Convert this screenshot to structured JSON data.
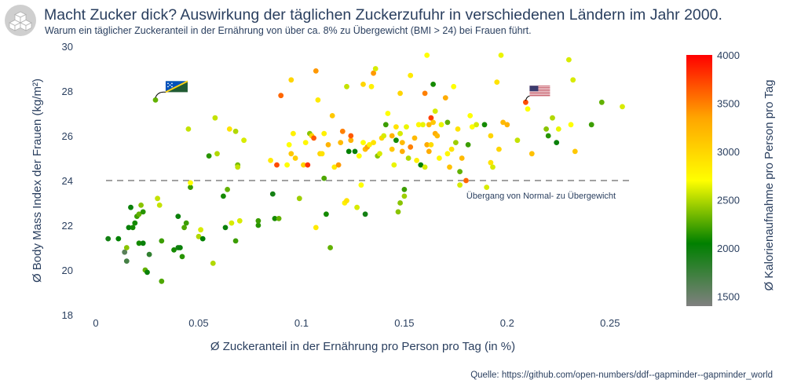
{
  "header": {
    "title": "Macht Zucker dick? Auswirkung der täglichen Zuckerzufuhr in verschiedenen Ländern im Jahr 2000.",
    "subtitle": "Warum ein täglicher Zuckeranteil in der Ernährung von über ca. 8% zu Übergewicht (BMI > 24) bei Frauen führt.",
    "logo_icon": "cubes-icon"
  },
  "footer": {
    "source": "Quelle: https://github.com/open-numbers/ddf--gapminder--gapminder_world"
  },
  "chart_data": {
    "type": "scatter",
    "xlabel": "Ø Zuckeranteil in der Ernährung pro Person pro Tag (in %)",
    "ylabel": "Ø Body Mass Index der Frauen (kg/m²)",
    "xlim": [
      0,
      0.26
    ],
    "ylim": [
      18,
      30
    ],
    "x_ticks": [
      "0",
      "0.05",
      "0.1",
      "0.15",
      "0.2",
      "0.25"
    ],
    "x_tick_values": [
      0,
      0.05,
      0.1,
      0.15,
      0.2,
      0.25
    ],
    "y_ticks": [
      "18",
      "20",
      "22",
      "24",
      "26",
      "28",
      "30"
    ],
    "y_tick_values": [
      18,
      20,
      22,
      24,
      26,
      28,
      30
    ],
    "grid": false,
    "colorbar": {
      "title": "Ø Kalorienaufnahme pro Person pro Tag",
      "min": 1400,
      "max": 4000,
      "ticks": [
        "1500",
        "2000",
        "2500",
        "3000",
        "3500",
        "4000"
      ],
      "tick_values": [
        1500,
        2000,
        2500,
        3000,
        3500,
        4000
      ],
      "colors": [
        "#808080",
        "#008000",
        "#ffff00",
        "#ffa500",
        "#ff0000"
      ]
    },
    "reference_line": {
      "y": 24,
      "label": "Übergang von Normal- zu Übergewicht"
    },
    "flag_annotations": [
      {
        "name": "solomon-islands-flag",
        "x": 0.029,
        "y": 27.6
      },
      {
        "name": "usa-flag",
        "x": 0.209,
        "y": 27.5
      }
    ],
    "points": [
      [
        0.006,
        21.4,
        1950
      ],
      [
        0.011,
        21.4,
        2050
      ],
      [
        0.014,
        20.8,
        1600
      ],
      [
        0.015,
        20.4,
        1700
      ],
      [
        0.015,
        21.0,
        2400
      ],
      [
        0.016,
        21.9,
        2000
      ],
      [
        0.017,
        22.8,
        2000
      ],
      [
        0.018,
        21.9,
        2100
      ],
      [
        0.019,
        22.1,
        2100
      ],
      [
        0.02,
        22.4,
        2200
      ],
      [
        0.021,
        21.2,
        2100
      ],
      [
        0.021,
        22.5,
        2300
      ],
      [
        0.022,
        22.9,
        2400
      ],
      [
        0.023,
        21.2,
        2000
      ],
      [
        0.023,
        22.6,
        2150
      ],
      [
        0.024,
        20.0,
        2300
      ],
      [
        0.025,
        19.9,
        2000
      ],
      [
        0.026,
        20.7,
        1800
      ],
      [
        0.029,
        27.6,
        2300
      ],
      [
        0.03,
        23.2,
        2550
      ],
      [
        0.031,
        22.9,
        2550
      ],
      [
        0.032,
        21.3,
        2200
      ],
      [
        0.032,
        19.5,
        2250
      ],
      [
        0.038,
        20.9,
        2100
      ],
      [
        0.04,
        21.0,
        1950
      ],
      [
        0.04,
        22.4,
        2000
      ],
      [
        0.041,
        21.0,
        2000
      ],
      [
        0.042,
        20.6,
        2150
      ],
      [
        0.043,
        21.9,
        2250
      ],
      [
        0.044,
        22.1,
        2200
      ],
      [
        0.045,
        26.3,
        2550
      ],
      [
        0.046,
        23.7,
        2200
      ],
      [
        0.046,
        23.9,
        2700
      ],
      [
        0.05,
        21.5,
        2500
      ],
      [
        0.051,
        21.8,
        2600
      ],
      [
        0.052,
        21.4,
        2050
      ],
      [
        0.055,
        25.1,
        2150
      ],
      [
        0.057,
        20.3,
        2500
      ],
      [
        0.058,
        26.8,
        2550
      ],
      [
        0.059,
        25.2,
        2500
      ],
      [
        0.062,
        23.3,
        2100
      ],
      [
        0.063,
        21.9,
        2000
      ],
      [
        0.064,
        23.6,
        2300
      ],
      [
        0.065,
        26.3,
        2900
      ],
      [
        0.066,
        22.1,
        2600
      ],
      [
        0.068,
        26.2,
        2500
      ],
      [
        0.068,
        21.3,
        2200
      ],
      [
        0.069,
        24.7,
        2350
      ],
      [
        0.069,
        24.6,
        2550
      ],
      [
        0.07,
        22.2,
        2600
      ],
      [
        0.072,
        25.8,
        2600
      ],
      [
        0.079,
        22.0,
        2150
      ],
      [
        0.079,
        22.2,
        2200
      ],
      [
        0.085,
        24.9,
        2850
      ],
      [
        0.086,
        23.4,
        1950
      ],
      [
        0.087,
        22.3,
        2100
      ],
      [
        0.088,
        24.7,
        3700
      ],
      [
        0.089,
        22.3,
        2300
      ],
      [
        0.09,
        27.8,
        3600
      ],
      [
        0.093,
        24.7,
        2700
      ],
      [
        0.094,
        25.6,
        2700
      ],
      [
        0.095,
        28.5,
        3000
      ],
      [
        0.095,
        25.2,
        3100
      ],
      [
        0.096,
        26.1,
        2800
      ],
      [
        0.097,
        25.0,
        3050
      ],
      [
        0.099,
        23.2,
        2450
      ],
      [
        0.101,
        24.7,
        3000
      ],
      [
        0.102,
        25.7,
        2750
      ],
      [
        0.103,
        24.7,
        3800
      ],
      [
        0.104,
        26.1,
        2400
      ],
      [
        0.105,
        26.0,
        3000
      ],
      [
        0.106,
        25.9,
        3650
      ],
      [
        0.107,
        21.9,
        2850
      ],
      [
        0.107,
        28.9,
        3400
      ],
      [
        0.108,
        27.6,
        2850
      ],
      [
        0.109,
        25.2,
        3000
      ],
      [
        0.11,
        25.2,
        2900
      ],
      [
        0.111,
        26.1,
        2800
      ],
      [
        0.111,
        24.1,
        2250
      ],
      [
        0.112,
        22.5,
        2100
      ],
      [
        0.113,
        25.6,
        3250
      ],
      [
        0.114,
        21.0,
        2300
      ],
      [
        0.115,
        26.9,
        3100
      ],
      [
        0.116,
        24.6,
        2850
      ],
      [
        0.118,
        24.7,
        3400
      ],
      [
        0.119,
        25.7,
        3200
      ],
      [
        0.12,
        26.2,
        3500
      ],
      [
        0.121,
        23.0,
        2800
      ],
      [
        0.122,
        28.2,
        2550
      ],
      [
        0.122,
        23.1,
        2900
      ],
      [
        0.123,
        25.3,
        2050
      ],
      [
        0.124,
        25.8,
        3250
      ],
      [
        0.124,
        26.0,
        3650
      ],
      [
        0.126,
        25.3,
        2000
      ],
      [
        0.127,
        22.8,
        2600
      ],
      [
        0.128,
        25.1,
        2700
      ],
      [
        0.129,
        23.8,
        2700
      ],
      [
        0.13,
        25.7,
        2700
      ],
      [
        0.13,
        28.3,
        3000
      ],
      [
        0.131,
        22.5,
        1950
      ],
      [
        0.131,
        25.4,
        3200
      ],
      [
        0.132,
        25.5,
        3350
      ],
      [
        0.133,
        25.6,
        2800
      ],
      [
        0.134,
        28.2,
        2800
      ],
      [
        0.135,
        28.8,
        3400
      ],
      [
        0.135,
        25.7,
        2900
      ],
      [
        0.136,
        29.0,
        2600
      ],
      [
        0.137,
        25.1,
        2400
      ],
      [
        0.138,
        25.2,
        2600
      ],
      [
        0.139,
        25.9,
        3000
      ],
      [
        0.14,
        26.0,
        2600
      ],
      [
        0.141,
        26.5,
        2200
      ],
      [
        0.142,
        27.0,
        2700
      ],
      [
        0.144,
        25.4,
        3100
      ],
      [
        0.144,
        26.0,
        3250
      ],
      [
        0.145,
        24.7,
        2650
      ],
      [
        0.146,
        25.8,
        2100
      ],
      [
        0.146,
        26.4,
        2900
      ],
      [
        0.147,
        22.6,
        2400
      ],
      [
        0.148,
        27.9,
        3000
      ],
      [
        0.148,
        23.0,
        2400
      ],
      [
        0.148,
        26.1,
        2600
      ],
      [
        0.149,
        25.7,
        3200
      ],
      [
        0.149,
        25.3,
        3300
      ],
      [
        0.15,
        23.3,
        2450
      ],
      [
        0.15,
        23.6,
        2200
      ],
      [
        0.151,
        26.4,
        2650
      ],
      [
        0.152,
        25.0,
        2500
      ],
      [
        0.153,
        25.5,
        3500
      ],
      [
        0.153,
        28.7,
        2850
      ],
      [
        0.155,
        25.9,
        3200
      ],
      [
        0.156,
        24.9,
        2800
      ],
      [
        0.157,
        26.5,
        2750
      ],
      [
        0.158,
        24.7,
        2050
      ],
      [
        0.159,
        26.5,
        2650
      ],
      [
        0.16,
        27.9,
        3500
      ],
      [
        0.16,
        24.6,
        2600
      ],
      [
        0.161,
        29.6,
        2700
      ],
      [
        0.161,
        25.6,
        3300
      ],
      [
        0.162,
        26.5,
        3200
      ],
      [
        0.162,
        25.3,
        3300
      ],
      [
        0.163,
        26.8,
        3750
      ],
      [
        0.163,
        25.6,
        2950
      ],
      [
        0.164,
        26.6,
        3100
      ],
      [
        0.164,
        28.3,
        2100
      ],
      [
        0.165,
        27.1,
        2600
      ],
      [
        0.165,
        26.1,
        3300
      ],
      [
        0.166,
        26.0,
        3200
      ],
      [
        0.167,
        25.0,
        2750
      ],
      [
        0.168,
        26.5,
        2650
      ],
      [
        0.17,
        27.7,
        3300
      ],
      [
        0.171,
        26.6,
        2300
      ],
      [
        0.171,
        25.2,
        2750
      ],
      [
        0.172,
        24.6,
        3150
      ],
      [
        0.173,
        25.4,
        2900
      ],
      [
        0.174,
        28.2,
        2700
      ],
      [
        0.175,
        25.7,
        2450
      ],
      [
        0.176,
        26.3,
        2900
      ],
      [
        0.177,
        23.8,
        2600
      ],
      [
        0.177,
        24.4,
        2300
      ],
      [
        0.178,
        25.0,
        3200
      ],
      [
        0.18,
        24.0,
        3600
      ],
      [
        0.181,
        25.6,
        2200
      ],
      [
        0.182,
        26.9,
        2700
      ],
      [
        0.183,
        26.4,
        2700
      ],
      [
        0.185,
        26.5,
        2600
      ],
      [
        0.189,
        26.5,
        2100
      ],
      [
        0.19,
        23.7,
        2600
      ],
      [
        0.192,
        24.8,
        2900
      ],
      [
        0.192,
        26.0,
        3000
      ],
      [
        0.193,
        24.6,
        2600
      ],
      [
        0.195,
        28.4,
        2900
      ],
      [
        0.196,
        25.4,
        3000
      ],
      [
        0.197,
        29.6,
        2650
      ],
      [
        0.198,
        26.6,
        3200
      ],
      [
        0.2,
        26.5,
        3250
      ],
      [
        0.205,
        25.8,
        2550
      ],
      [
        0.209,
        27.5,
        3700
      ],
      [
        0.21,
        27.2,
        2700
      ],
      [
        0.212,
        25.2,
        3150
      ],
      [
        0.219,
        26.3,
        2400
      ],
      [
        0.22,
        26.0,
        2150
      ],
      [
        0.222,
        26.8,
        2500
      ],
      [
        0.224,
        25.7,
        2000
      ],
      [
        0.225,
        26.3,
        2650
      ],
      [
        0.23,
        29.4,
        2600
      ],
      [
        0.231,
        26.5,
        2700
      ],
      [
        0.232,
        28.5,
        2600
      ],
      [
        0.233,
        25.3,
        3100
      ],
      [
        0.241,
        26.5,
        2200
      ],
      [
        0.246,
        27.5,
        2300
      ],
      [
        0.256,
        27.3,
        2600
      ]
    ]
  }
}
